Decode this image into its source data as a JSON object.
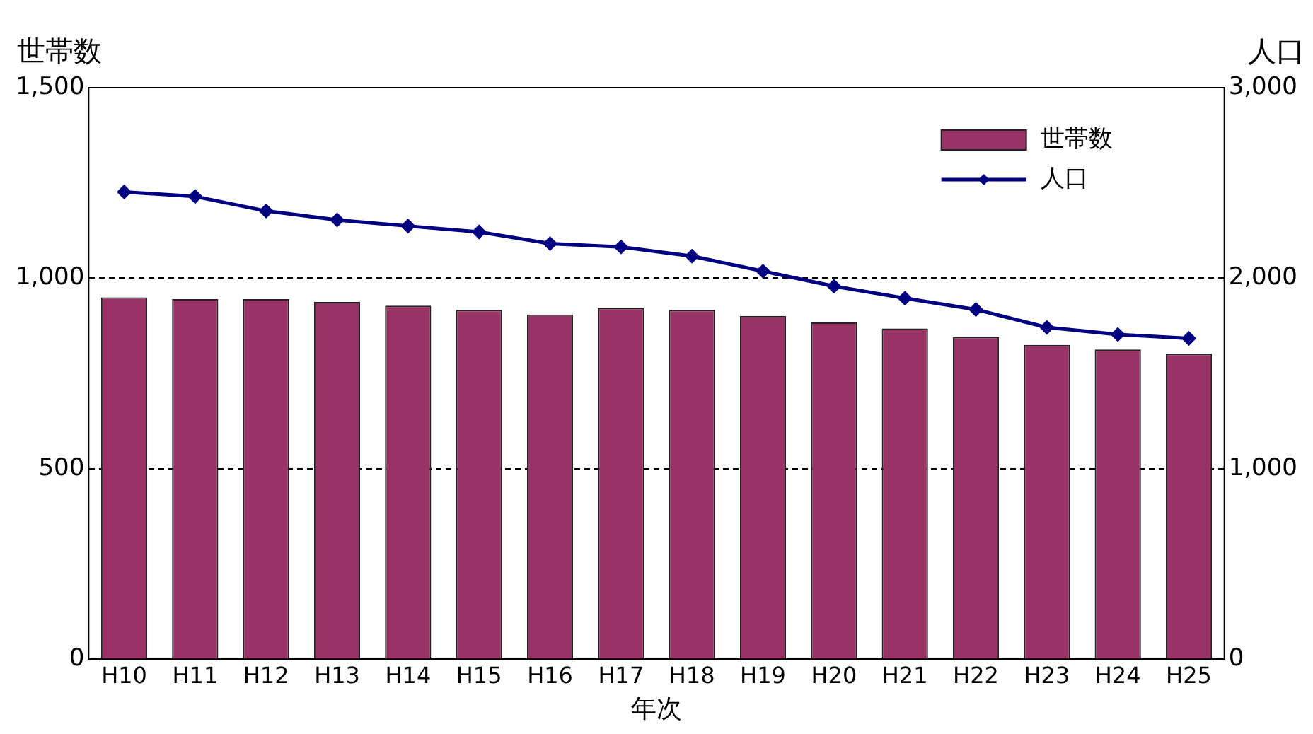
{
  "chart_data": {
    "type": "bar",
    "ylabel": "世帯数",
    "y2label": "人口",
    "xlabel": "年次",
    "categories": [
      "H10",
      "H11",
      "H12",
      "H13",
      "H14",
      "H15",
      "H16",
      "H17",
      "H18",
      "H19",
      "H20",
      "H21",
      "H22",
      "H23",
      "H24",
      "H25"
    ],
    "series": [
      {
        "name": "世帯数",
        "color": "#993366",
        "values": [
          950,
          945,
          945,
          938,
          928,
          917,
          905,
          922,
          917,
          901,
          884,
          868,
          846,
          825,
          813,
          802
        ]
      },
      {
        "name": "人口",
        "type": "line",
        "axis": "y2",
        "color": "#000080",
        "marker": "diamond",
        "values": [
          2453,
          2429,
          2353,
          2306,
          2274,
          2243,
          2182,
          2164,
          2116,
          2037,
          1958,
          1895,
          1836,
          1742,
          1705,
          1684
        ]
      }
    ],
    "ylim": [
      0,
      1500
    ],
    "yticks": [
      0,
      {
        "value": 500,
        "label": "500"
      },
      {
        "value": 1000,
        "label": "1,000"
      },
      {
        "value": 1500,
        "label": "1,500"
      }
    ],
    "y2lim": [
      0,
      3000
    ],
    "y2ticks": [
      0,
      {
        "value": 1000,
        "label": "1,000"
      },
      {
        "value": 2000,
        "label": "2,000"
      },
      {
        "value": 3000,
        "label": "3,000"
      }
    ],
    "grid": "y",
    "legend": "top right"
  }
}
